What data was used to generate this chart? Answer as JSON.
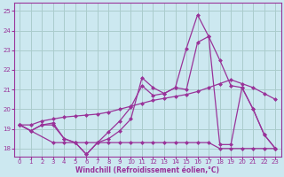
{
  "xlabel": "Windchill (Refroidissement éolien,°C)",
  "bg_color": "#cce8f0",
  "line_color": "#993399",
  "grid_color": "#aacccc",
  "ylim": [
    17.6,
    25.4
  ],
  "xlim": [
    -0.5,
    23.5
  ],
  "yticks": [
    18,
    19,
    20,
    21,
    22,
    23,
    24,
    25
  ],
  "xticks": [
    0,
    1,
    2,
    3,
    4,
    5,
    6,
    7,
    8,
    9,
    10,
    11,
    12,
    13,
    14,
    15,
    16,
    17,
    18,
    19,
    20,
    21,
    22,
    23
  ],
  "line1_x": [
    0,
    1,
    2,
    3,
    4,
    5,
    6,
    7,
    8,
    9,
    10,
    11,
    12,
    13,
    14,
    15,
    16,
    17,
    18,
    19,
    20,
    21,
    22,
    23
  ],
  "line1_y": [
    19.2,
    18.9,
    19.2,
    19.2,
    18.5,
    18.3,
    17.7,
    18.3,
    18.5,
    18.9,
    19.5,
    21.6,
    21.1,
    20.8,
    21.1,
    23.1,
    24.8,
    23.7,
    18.2,
    18.2,
    21.1,
    20.0,
    18.7,
    18.0
  ],
  "line2_x": [
    0,
    1,
    2,
    3,
    4,
    5,
    6,
    7,
    8,
    9,
    10,
    11,
    12,
    13,
    14,
    15,
    16,
    17,
    18,
    19,
    20,
    21,
    22,
    23
  ],
  "line2_y": [
    19.2,
    18.9,
    19.2,
    19.3,
    18.5,
    18.3,
    17.7,
    18.3,
    18.85,
    19.4,
    20.1,
    21.2,
    20.7,
    20.8,
    21.1,
    21.0,
    23.4,
    23.7,
    22.5,
    21.2,
    21.1,
    20.0,
    18.7,
    18.0
  ],
  "line3_x": [
    0,
    1,
    2,
    3,
    4,
    5,
    6,
    7,
    8,
    9,
    10,
    11,
    12,
    13,
    14,
    15,
    16,
    17,
    18,
    19,
    20,
    21,
    22,
    23
  ],
  "line3_y": [
    19.2,
    19.2,
    19.4,
    19.5,
    19.6,
    19.65,
    19.7,
    19.75,
    19.85,
    20.0,
    20.15,
    20.3,
    20.45,
    20.55,
    20.65,
    20.75,
    20.9,
    21.1,
    21.3,
    21.5,
    21.3,
    21.1,
    20.8,
    20.5
  ],
  "line4_x": [
    0,
    3,
    4,
    5,
    6,
    7,
    8,
    9,
    10,
    11,
    12,
    13,
    14,
    15,
    16,
    17,
    18,
    19,
    20,
    21,
    22,
    23
  ],
  "line4_y": [
    19.2,
    18.3,
    18.3,
    18.3,
    18.3,
    18.3,
    18.3,
    18.3,
    18.3,
    18.3,
    18.3,
    18.3,
    18.3,
    18.3,
    18.3,
    18.3,
    18.0,
    18.0,
    18.0,
    18.0,
    18.0,
    18.0
  ]
}
